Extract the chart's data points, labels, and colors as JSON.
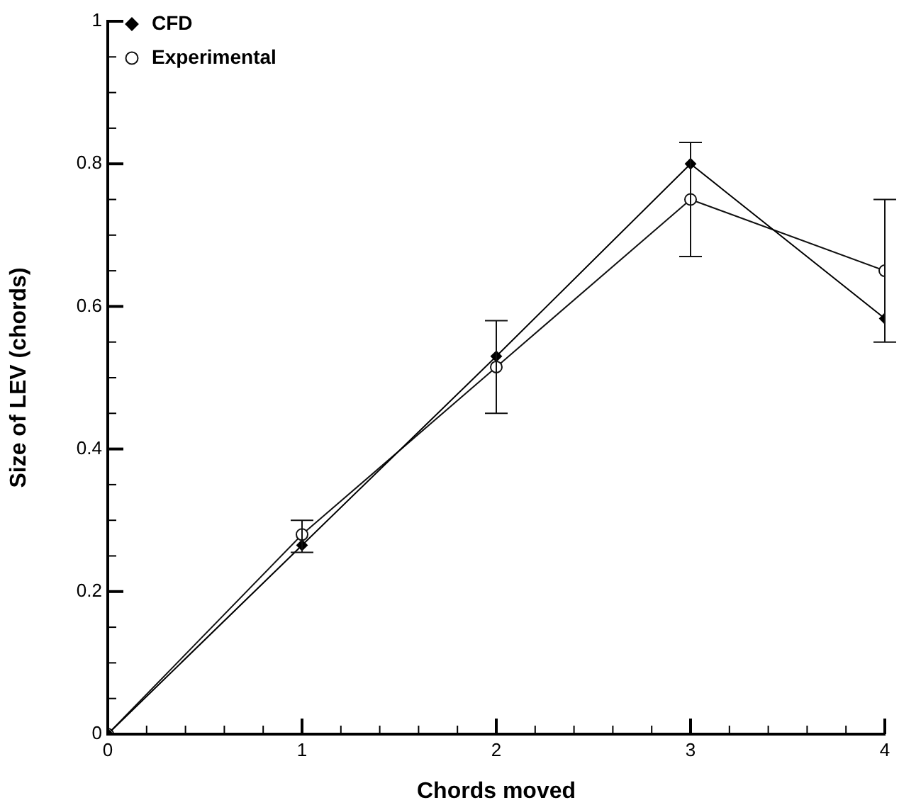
{
  "chart_data": {
    "type": "line",
    "xlabel": "Chords moved",
    "ylabel": "Size of LEV (chords)",
    "x": [
      0,
      1,
      2,
      3,
      4
    ],
    "series": [
      {
        "name": "CFD",
        "color": "#000000",
        "marker": "diamond",
        "values": [
          0,
          0.265,
          0.53,
          0.8,
          0.583
        ]
      },
      {
        "name": "Experimental",
        "color": "#111111",
        "marker": "circle",
        "values": [
          0,
          0.28,
          0.515,
          0.75,
          0.65
        ],
        "errors": [
          null,
          [
            0.255,
            0.3
          ],
          [
            0.45,
            0.58
          ],
          [
            0.67,
            0.83
          ],
          [
            0.55,
            0.75
          ]
        ]
      }
    ],
    "xlim": [
      0,
      4
    ],
    "ylim": [
      0,
      1
    ],
    "xticks": [
      0,
      {
        "value": 0.2,
        "label": null
      },
      {
        "value": 0.4,
        "label": null
      },
      {
        "value": 0.6,
        "label": null
      },
      {
        "value": 0.8,
        "label": null
      },
      1,
      {
        "value": 1.2,
        "label": null
      },
      {
        "value": 1.4,
        "label": null
      },
      {
        "value": 1.6,
        "label": null
      },
      {
        "value": 1.8,
        "label": null
      },
      2,
      {
        "value": 2.2,
        "label": null
      },
      {
        "value": 2.4,
        "label": null
      },
      {
        "value": 2.6,
        "label": null
      },
      {
        "value": 2.8,
        "label": null
      },
      3,
      {
        "value": 3.2,
        "label": null
      },
      {
        "value": 3.4,
        "label": null
      },
      {
        "value": 3.6,
        "label": null
      },
      {
        "value": 3.8,
        "label": null
      },
      4
    ],
    "yticks": [
      0,
      {
        "value": 0.05,
        "label": null
      },
      {
        "value": 0.1,
        "label": null
      },
      {
        "value": 0.15,
        "label": null
      },
      0.2,
      {
        "value": 0.25,
        "label": null
      },
      {
        "value": 0.3,
        "label": null
      },
      {
        "value": 0.35,
        "label": null
      },
      0.4,
      {
        "value": 0.45,
        "label": null
      },
      {
        "value": 0.5,
        "label": null
      },
      {
        "value": 0.55,
        "label": null
      },
      0.6,
      {
        "value": 0.65,
        "label": null
      },
      {
        "value": 0.7,
        "label": null
      },
      {
        "value": 0.75,
        "label": null
      },
      0.8,
      {
        "value": 0.85,
        "label": null
      },
      {
        "value": 0.9,
        "label": null
      },
      {
        "value": 0.95,
        "label": null
      },
      1
    ],
    "grid": false,
    "legend": "top left"
  }
}
